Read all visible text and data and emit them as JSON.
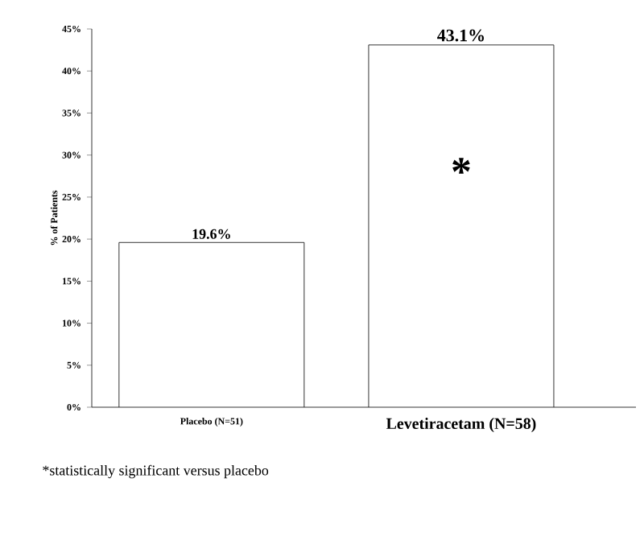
{
  "chart_data": {
    "type": "bar",
    "ylabel": "% of Patients",
    "categories": [
      "Placebo (N=51)",
      "Levetiracetam (N=58)"
    ],
    "values": [
      19.6,
      43.1
    ],
    "color": "#ffffff",
    "value_labels": [
      "19.6%",
      "43.1%"
    ],
    "ylim": [
      0,
      45
    ],
    "yticks": [
      {
        "value": 0,
        "label": "0%"
      },
      {
        "value": 5,
        "label": "5%"
      },
      {
        "value": 10,
        "label": "10%"
      },
      {
        "value": 15,
        "label": "15%"
      },
      {
        "value": 20,
        "label": "20%"
      },
      {
        "value": 25,
        "label": "25%"
      },
      {
        "value": 30,
        "label": "30%"
      },
      {
        "value": 35,
        "label": "35%"
      },
      {
        "value": 40,
        "label": "40%"
      },
      {
        "value": 45,
        "label": "45%"
      }
    ],
    "grid": false,
    "annotations": [
      "*",
      "*statistically significant versus placebo"
    ]
  }
}
